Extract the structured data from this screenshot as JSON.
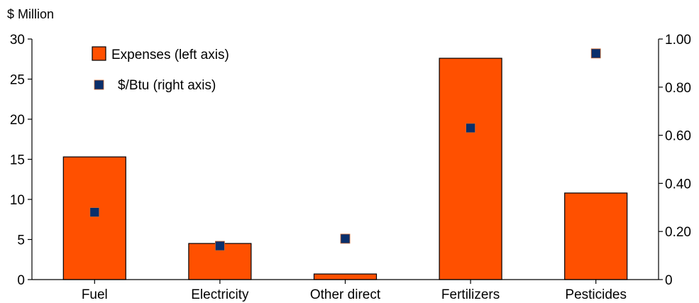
{
  "chart_data": {
    "type": "bar",
    "unit_label": "$ Million",
    "categories": [
      "Fuel",
      "Electricity",
      "Other direct",
      "Fertilizers",
      "Pesticides"
    ],
    "series": [
      {
        "name": "Expenses (left axis)",
        "kind": "bar",
        "axis": "left",
        "color": "#ff5000",
        "values": [
          15.3,
          4.5,
          0.7,
          27.6,
          10.8
        ]
      },
      {
        "name": "$/Btu (right axis)",
        "kind": "marker",
        "axis": "right",
        "color": "#0a2f6b",
        "values": [
          0.28,
          0.14,
          0.17,
          0.63,
          0.94
        ]
      }
    ],
    "left_axis": {
      "ylim": [
        0,
        30
      ],
      "ticks": [
        0,
        5,
        10,
        15,
        20,
        25,
        30
      ],
      "tick_labels": [
        "0",
        "5",
        "10",
        "15",
        "20",
        "25",
        "30"
      ]
    },
    "right_axis": {
      "ylim": [
        0,
        1.0
      ],
      "ticks": [
        0,
        0.2,
        0.4,
        0.6,
        0.8,
        1.0
      ],
      "tick_labels": [
        "0",
        "0.20",
        "0.40",
        "0.60",
        "0.80",
        "1.00"
      ]
    },
    "legend_position": "top-left",
    "grid": false
  }
}
